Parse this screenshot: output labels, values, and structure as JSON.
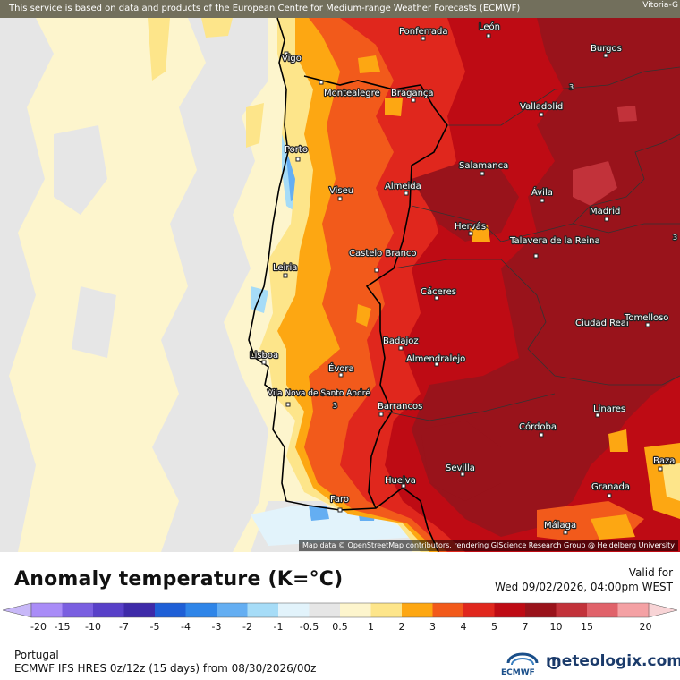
{
  "attribution_top": "This service is based on data and products of the European Centre for Medium-range Weather Forecasts (ECMWF)",
  "corner_label": "Vitoria-G",
  "attribution_bottom": "Map data © OpenStreetMap contributors, rendering GIScience Research Group @ Heidelberg University",
  "title": "Anomaly temperature (K=°C)",
  "valid_label": "Valid for",
  "valid_datetime": "Wed 09/02/2026, 04:00pm WEST",
  "region": "Portugal",
  "model_line": "ECMWF IFS HRES 0z/12z (15 days) from  08/30/2026/00z",
  "ecmwf_label": "ECMWF",
  "brand": "meteologix.com",
  "colorbar": {
    "ticks": [
      "-20",
      "-15",
      "-10",
      "-7",
      "-5",
      "-4",
      "-3",
      "-2",
      "-1",
      "-0.5",
      "0.5",
      "1",
      "2",
      "3",
      "4",
      "5",
      "7",
      "10",
      "15",
      "20"
    ],
    "colors": [
      "#a98cf7",
      "#7a5fe0",
      "#5840c8",
      "#3e2aa8",
      "#1f5fd6",
      "#2f85e8",
      "#64aef2",
      "#a6dcf7",
      "#e2f3fb",
      "#e6e6e6",
      "#fdf5cd",
      "#fde58a",
      "#fda712",
      "#f25a1b",
      "#e0271d",
      "#be0b14",
      "#99131b",
      "#c2323a",
      "#e0626a",
      "#f4a1a4"
    ],
    "left_end_color": "#c8b8f8",
    "right_end_color": "#f8d4d6"
  },
  "map": {
    "cities": [
      "Vigo",
      "Ponferrada",
      "León",
      "Burgos",
      "Montealegre",
      "Bragança",
      "Valladolid",
      "Porto",
      "Salamanca",
      "Viseu",
      "Almeida",
      "Ávila",
      "Madrid",
      "Hervás",
      "Talavera de la Reina",
      "Castelo Branco",
      "Leiria",
      "Cáceres",
      "Ciudad Real",
      "Tomelloso",
      "Badajoz",
      "Lisboa",
      "Almendralejo",
      "Évora",
      "Vila Nova de Santo André",
      "Barrancos",
      "Linares",
      "Córdoba",
      "Sevilla",
      "Baza",
      "Huelva",
      "Granada",
      "Faro",
      "Málaga"
    ],
    "contour_values": [
      "3",
      "3",
      "3"
    ]
  }
}
